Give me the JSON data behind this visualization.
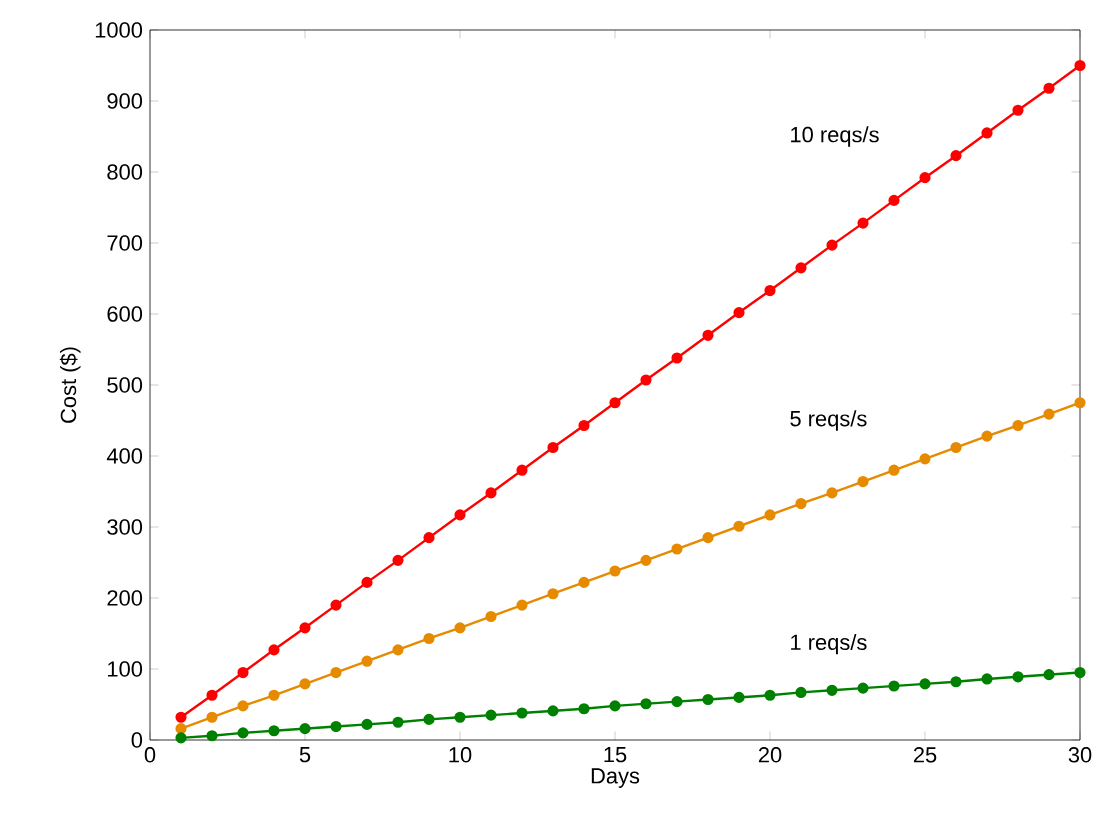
{
  "chart_data": {
    "type": "line",
    "xlabel": "Days",
    "ylabel": "Cost ($)",
    "x": [
      1,
      2,
      3,
      4,
      5,
      6,
      7,
      8,
      9,
      10,
      11,
      12,
      13,
      14,
      15,
      16,
      17,
      18,
      19,
      20,
      21,
      22,
      23,
      24,
      25,
      26,
      27,
      28,
      29,
      30
    ],
    "series": [
      {
        "color": "#ff0000",
        "values": [
          32,
          63,
          95,
          127,
          158,
          190,
          222,
          253,
          285,
          317,
          348,
          380,
          412,
          443,
          475,
          507,
          538,
          570,
          602,
          633,
          665,
          697,
          728,
          760,
          792,
          823,
          855,
          887,
          918,
          950
        ]
      },
      {
        "color": "#e68a00",
        "values": [
          16,
          32,
          48,
          63,
          79,
          95,
          111,
          127,
          143,
          158,
          174,
          190,
          206,
          222,
          238,
          253,
          269,
          285,
          301,
          317,
          333,
          348,
          364,
          380,
          396,
          412,
          428,
          443,
          459,
          475
        ]
      },
      {
        "color": "#008000",
        "values": [
          3,
          6,
          10,
          13,
          16,
          19,
          22,
          25,
          29,
          32,
          35,
          38,
          41,
          44,
          48,
          51,
          54,
          57,
          60,
          63,
          67,
          70,
          73,
          76,
          79,
          82,
          86,
          89,
          92,
          95
        ]
      }
    ],
    "annotations": [
      "10 reqs/s",
      "5 reqs/s",
      "1 reqs/s"
    ],
    "xlim": [
      0,
      30
    ],
    "ylim": [
      0,
      1000
    ],
    "xticks": [
      0,
      5,
      10,
      15,
      20,
      25,
      30
    ],
    "yticks": [
      0,
      100,
      200,
      300,
      400,
      500,
      600,
      700,
      800,
      900,
      1000
    ],
    "marker": "circle",
    "line_style": "solid"
  }
}
